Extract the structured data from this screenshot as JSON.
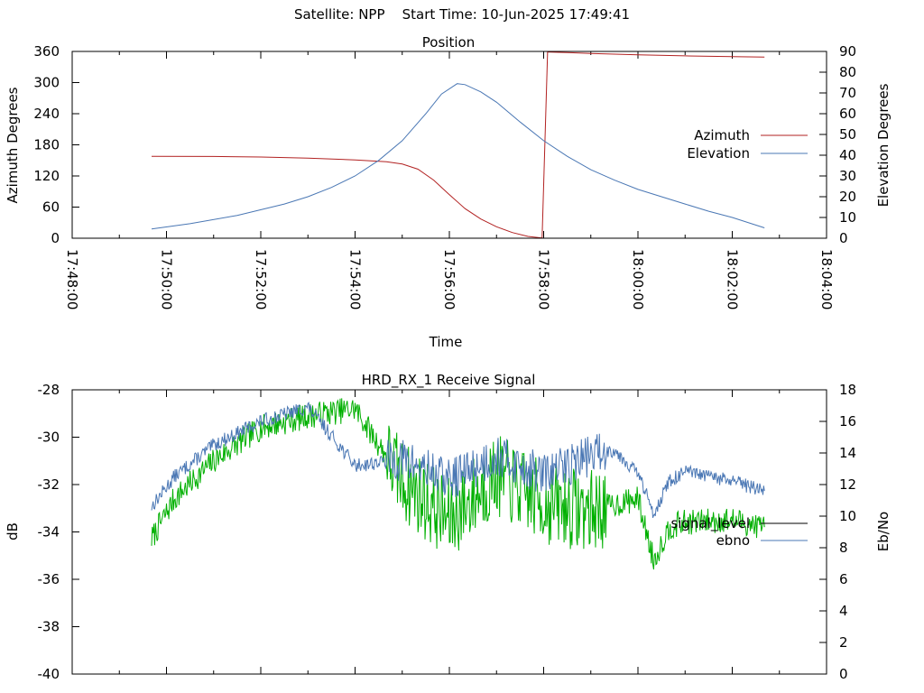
{
  "header": {
    "suptitle": "Satellite: NPP    Start Time: 10-Jun-2025 17:49:41"
  },
  "colors": {
    "azimuth": "#b22222",
    "elevation": "#4a77b4",
    "signal_level": "#000000",
    "ebno": "#4a77b4",
    "signal_green": "#00b000",
    "axes": "#000000",
    "background": "#ffffff"
  },
  "chart_data": [
    {
      "type": "line",
      "title": "Position",
      "xlabel": "Time",
      "ylabel": "Azimuth Degrees",
      "y2label": "Elevation Degrees",
      "xlim": [
        "17:48:00",
        "18:04:00"
      ],
      "xticks": [
        "17:48:00",
        "17:50:00",
        "17:52:00",
        "17:54:00",
        "17:56:00",
        "17:58:00",
        "18:00:00",
        "18:02:00",
        "18:04:00"
      ],
      "ylim": [
        0,
        360
      ],
      "yticks": [
        "0",
        "60",
        "120",
        "180",
        "240",
        "300",
        "360"
      ],
      "y2lim": [
        0,
        90
      ],
      "y2ticks": [
        "0",
        "10",
        "20",
        "30",
        "40",
        "50",
        "60",
        "70",
        "80",
        "90"
      ],
      "legend_position": "right",
      "series": [
        {
          "name": "Azimuth",
          "axis": "left",
          "points": [
            [
              "17:49:41",
              158
            ],
            [
              "17:51:00",
              157.5
            ],
            [
              "17:52:00",
              156.5
            ],
            [
              "17:53:00",
              154.5
            ],
            [
              "17:54:00",
              151
            ],
            [
              "17:54:40",
              147.5
            ],
            [
              "17:55:00",
              143
            ],
            [
              "17:55:20",
              133
            ],
            [
              "17:55:40",
              112
            ],
            [
              "17:56:00",
              84
            ],
            [
              "17:56:20",
              57
            ],
            [
              "17:56:40",
              37
            ],
            [
              "17:57:00",
              22
            ],
            [
              "17:57:20",
              11
            ],
            [
              "17:57:40",
              3.5
            ],
            [
              "17:57:58",
              0.5
            ],
            [
              "17:58:05",
              359
            ],
            [
              "17:58:30",
              358
            ],
            [
              "17:59:00",
              356
            ],
            [
              "18:00:00",
              353.5
            ],
            [
              "18:01:00",
              351.5
            ],
            [
              "18:02:00",
              350
            ],
            [
              "18:02:41",
              349
            ]
          ]
        },
        {
          "name": "Elevation",
          "axis": "right",
          "points": [
            [
              "17:49:41",
              4.5
            ],
            [
              "17:50:30",
              7
            ],
            [
              "17:51:30",
              11
            ],
            [
              "17:52:30",
              16.5
            ],
            [
              "17:53:00",
              20
            ],
            [
              "17:53:30",
              24.5
            ],
            [
              "17:54:00",
              30
            ],
            [
              "17:54:30",
              37.5
            ],
            [
              "17:55:00",
              47
            ],
            [
              "17:55:30",
              60
            ],
            [
              "17:55:50",
              69.5
            ],
            [
              "17:56:10",
              74.5
            ],
            [
              "17:56:20",
              74
            ],
            [
              "17:56:40",
              70.5
            ],
            [
              "17:57:00",
              65.5
            ],
            [
              "17:57:30",
              56
            ],
            [
              "17:58:00",
              47
            ],
            [
              "17:58:30",
              39.5
            ],
            [
              "17:59:00",
              33
            ],
            [
              "17:59:30",
              28
            ],
            [
              "18:00:00",
              23.5
            ],
            [
              "18:00:30",
              20
            ],
            [
              "18:01:00",
              16.5
            ],
            [
              "18:01:30",
              13
            ],
            [
              "18:02:00",
              10
            ],
            [
              "18:02:41",
              5
            ]
          ]
        }
      ]
    },
    {
      "type": "line",
      "title": "HRD_RX_1 Receive Signal",
      "ylabel": "dB",
      "y2label": "Eb/No",
      "xlim": [
        "17:48:00",
        "18:04:00"
      ],
      "ylim": [
        -40,
        -28
      ],
      "yticks": [
        "-28",
        "-30",
        "-32",
        "-34",
        "-36",
        "-38",
        "-40"
      ],
      "y2lim": [
        0,
        18
      ],
      "y2ticks": [
        "0",
        "2",
        "4",
        "6",
        "8",
        "10",
        "12",
        "14",
        "16",
        "18"
      ],
      "legend_position": "right",
      "series": [
        {
          "name": "signal_level",
          "axis": "left",
          "points": [
            [
              "17:49:41",
              -34.3
            ],
            [
              "17:50:10",
              -32.6
            ],
            [
              "17:51:00",
              -31.0
            ],
            [
              "17:52:00",
              -29.6
            ],
            [
              "17:53:00",
              -29.1
            ],
            [
              "17:54:00",
              -28.8
            ],
            [
              "17:55:00",
              -31.8
            ],
            [
              "17:56:00",
              -33.5
            ],
            [
              "17:57:00",
              -31.6
            ],
            [
              "17:58:00",
              -32.8
            ],
            [
              "17:59:00",
              -33.1
            ],
            [
              "18:00:00",
              -32.6
            ],
            [
              "18:00:20",
              -35.2
            ],
            [
              "18:00:40",
              -33.8
            ],
            [
              "18:01:00",
              -33.6
            ],
            [
              "18:02:00",
              -33.5
            ],
            [
              "18:02:41",
              -33.8
            ]
          ]
        },
        {
          "name": "ebno",
          "axis": "right",
          "points": [
            [
              "17:49:41",
              10.6
            ],
            [
              "17:50:10",
              12.5
            ],
            [
              "17:51:00",
              14.5
            ],
            [
              "17:52:00",
              16.0
            ],
            [
              "17:53:00",
              16.9
            ],
            [
              "17:53:30",
              15.1
            ],
            [
              "17:54:00",
              13.2
            ],
            [
              "17:55:00",
              13.6
            ],
            [
              "17:56:00",
              12.3
            ],
            [
              "17:57:00",
              13.8
            ],
            [
              "17:58:00",
              12.6
            ],
            [
              "17:59:00",
              13.9
            ],
            [
              "17:59:30",
              14.2
            ],
            [
              "18:00:00",
              12.7
            ],
            [
              "18:00:20",
              10.2
            ],
            [
              "18:00:40",
              12.2
            ],
            [
              "18:01:00",
              12.8
            ],
            [
              "18:02:00",
              12.2
            ],
            [
              "18:02:41",
              11.6
            ]
          ]
        }
      ]
    }
  ]
}
